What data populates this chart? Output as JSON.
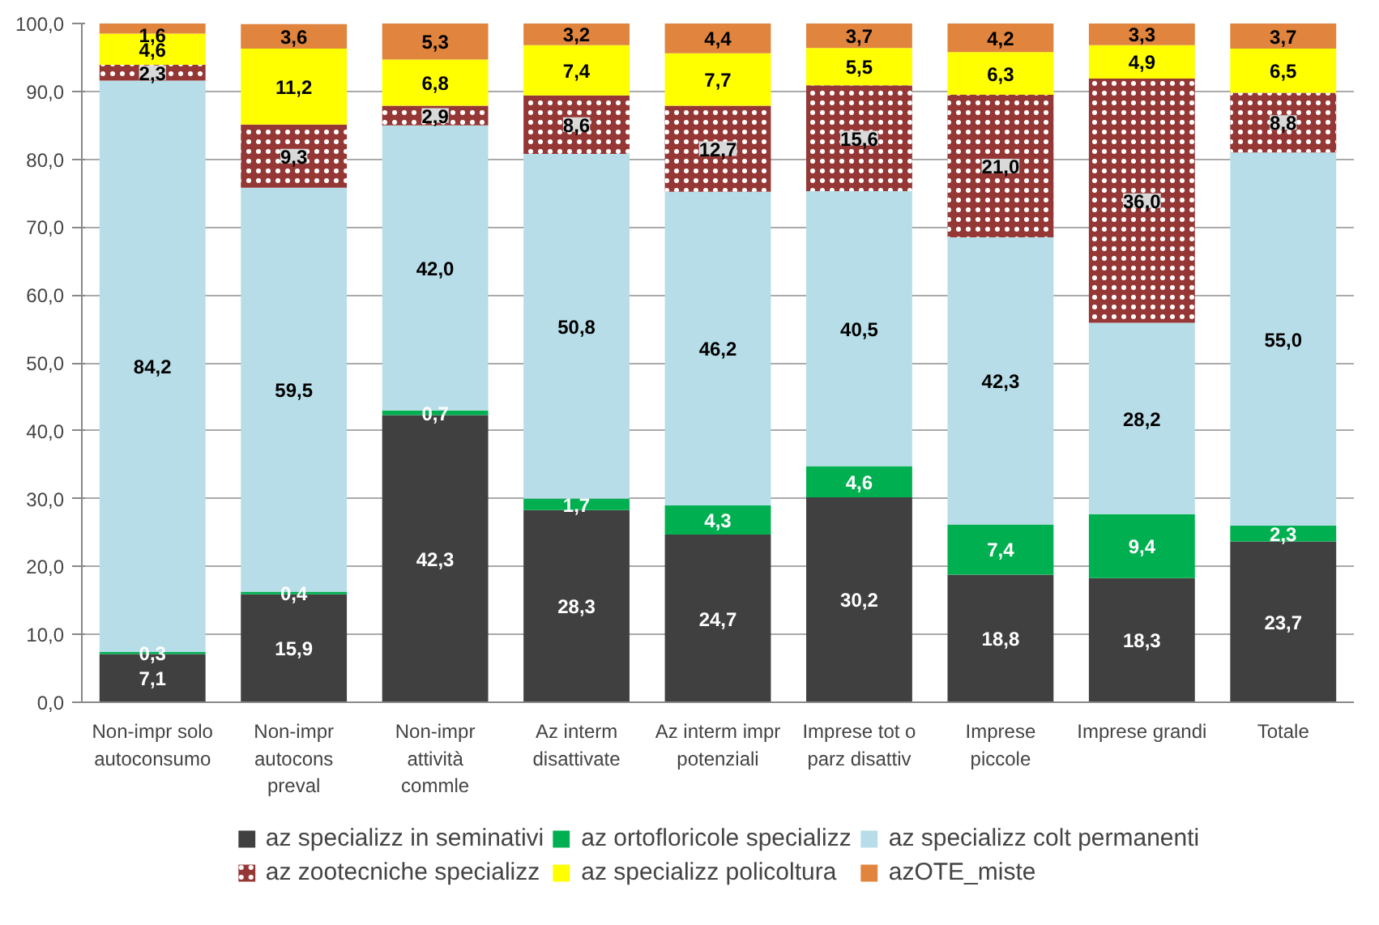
{
  "chart_data": {
    "type": "bar",
    "stacked": true,
    "categories": [
      "Non-impr solo autoconsumo",
      "Non-impr autocons preval",
      "Non-impr attività commle",
      "Az interm disattivate",
      "Az interm impr potenziali",
      "Imprese tot o parz disattiv",
      "Imprese piccole",
      "Imprese grandi",
      "Totale"
    ],
    "series": [
      {
        "name": "az specializz in seminativi",
        "color": "#404040",
        "values": [
          7.1,
          15.9,
          42.3,
          28.3,
          24.7,
          30.2,
          18.8,
          18.3,
          23.7
        ],
        "value_labels": [
          "7,1",
          "15,9",
          "42,3",
          "28,3",
          "24,7",
          "30,2",
          "18,8",
          "18,3",
          "23,7"
        ]
      },
      {
        "name": "az ortofloricole specializz",
        "color": "#00b050",
        "values": [
          0.3,
          0.4,
          0.7,
          1.7,
          4.3,
          4.6,
          7.4,
          9.4,
          2.3
        ],
        "value_labels": [
          "0,3",
          "0,4",
          "0,7",
          "1,7",
          "4,3",
          "4,6",
          "7,4",
          "9,4",
          "2,3"
        ]
      },
      {
        "name": "az specializz colt permanenti",
        "color": "#b7dde8",
        "values": [
          84.2,
          59.5,
          42.0,
          50.8,
          46.2,
          40.5,
          42.3,
          28.2,
          55.0
        ],
        "value_labels": [
          "84,2",
          "59,5",
          "42,0",
          "50,8",
          "46,2",
          "40,5",
          "42,3",
          "28,2",
          "55,0"
        ]
      },
      {
        "name": "az zootecniche specializz",
        "color": "#953735",
        "values": [
          2.3,
          9.3,
          2.9,
          8.6,
          12.7,
          15.6,
          21.0,
          36.0,
          8.8
        ],
        "value_labels": [
          "2,3",
          "9,3",
          "2,9",
          "8,6",
          "12,7",
          "15,6",
          "21,0",
          "36,0",
          "8,8"
        ]
      },
      {
        "name": "az specializz policoltura",
        "color": "#ffff00",
        "values": [
          4.6,
          11.2,
          6.8,
          7.4,
          7.7,
          5.5,
          6.3,
          4.9,
          6.5
        ],
        "value_labels": [
          "4,6",
          "11,2",
          "6,8",
          "7,4",
          "7,7",
          "5,5",
          "6,3",
          "4,9",
          "6,5"
        ]
      },
      {
        "name": "azOTE_miste",
        "color": "#e0843e",
        "values": [
          1.6,
          3.6,
          5.3,
          3.2,
          4.4,
          3.7,
          4.2,
          3.3,
          3.7
        ],
        "value_labels": [
          "1,6",
          "3,6",
          "5,3",
          "3,2",
          "4,4",
          "3,7",
          "4,2",
          "3,3",
          "3,7"
        ]
      }
    ],
    "ylim": [
      0,
      100
    ],
    "yticks": [
      {
        "value": 0,
        "label": "0,0"
      },
      {
        "value": 10,
        "label": "10,0"
      },
      {
        "value": 20,
        "label": "20,0"
      },
      {
        "value": 30,
        "label": "30,0"
      },
      {
        "value": 40,
        "label": "40,0"
      },
      {
        "value": 50,
        "label": "50,0"
      },
      {
        "value": 60,
        "label": "60,0"
      },
      {
        "value": 70,
        "label": "70,0"
      },
      {
        "value": 80,
        "label": "80,0"
      },
      {
        "value": 90,
        "label": "90,0"
      },
      {
        "value": 100,
        "label": "100,0"
      }
    ],
    "grid": "y",
    "legend": "bottom"
  }
}
